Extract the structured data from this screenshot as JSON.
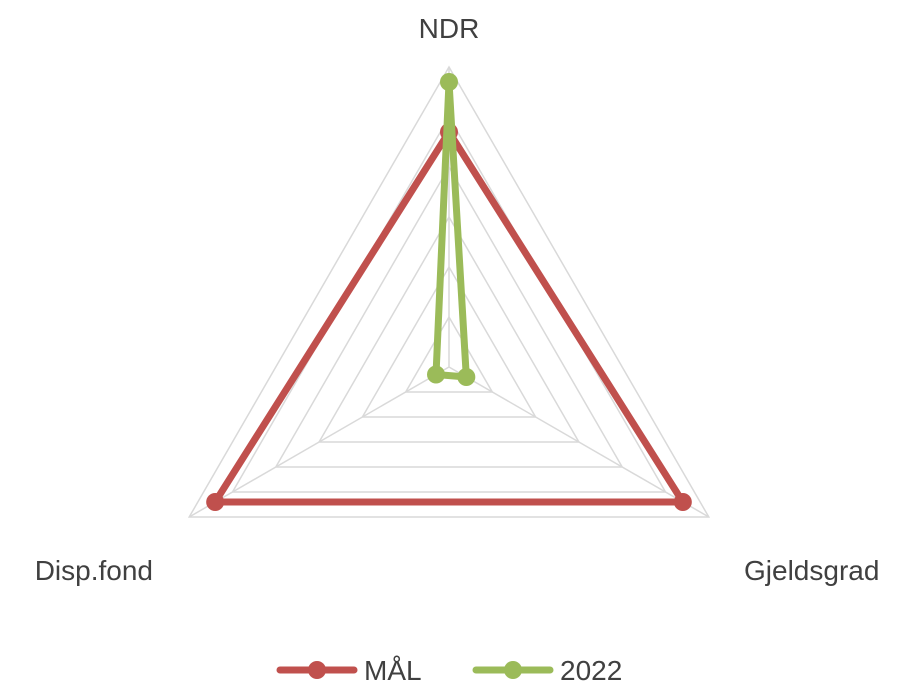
{
  "chart_data": {
    "type": "radar",
    "axes": [
      "NDR",
      "Gjeldsgrad",
      "Disp.fond"
    ],
    "rlim": [
      0,
      6
    ],
    "ring_count": 6,
    "series": [
      {
        "name": "MÅL",
        "color": "#c0504d",
        "values": [
          4.7,
          5.4,
          5.4
        ]
      },
      {
        "name": "2022",
        "color": "#9bbb59",
        "values": [
          5.7,
          0.4,
          0.3
        ]
      }
    ],
    "legend_position": "bottom",
    "grid": true
  }
}
